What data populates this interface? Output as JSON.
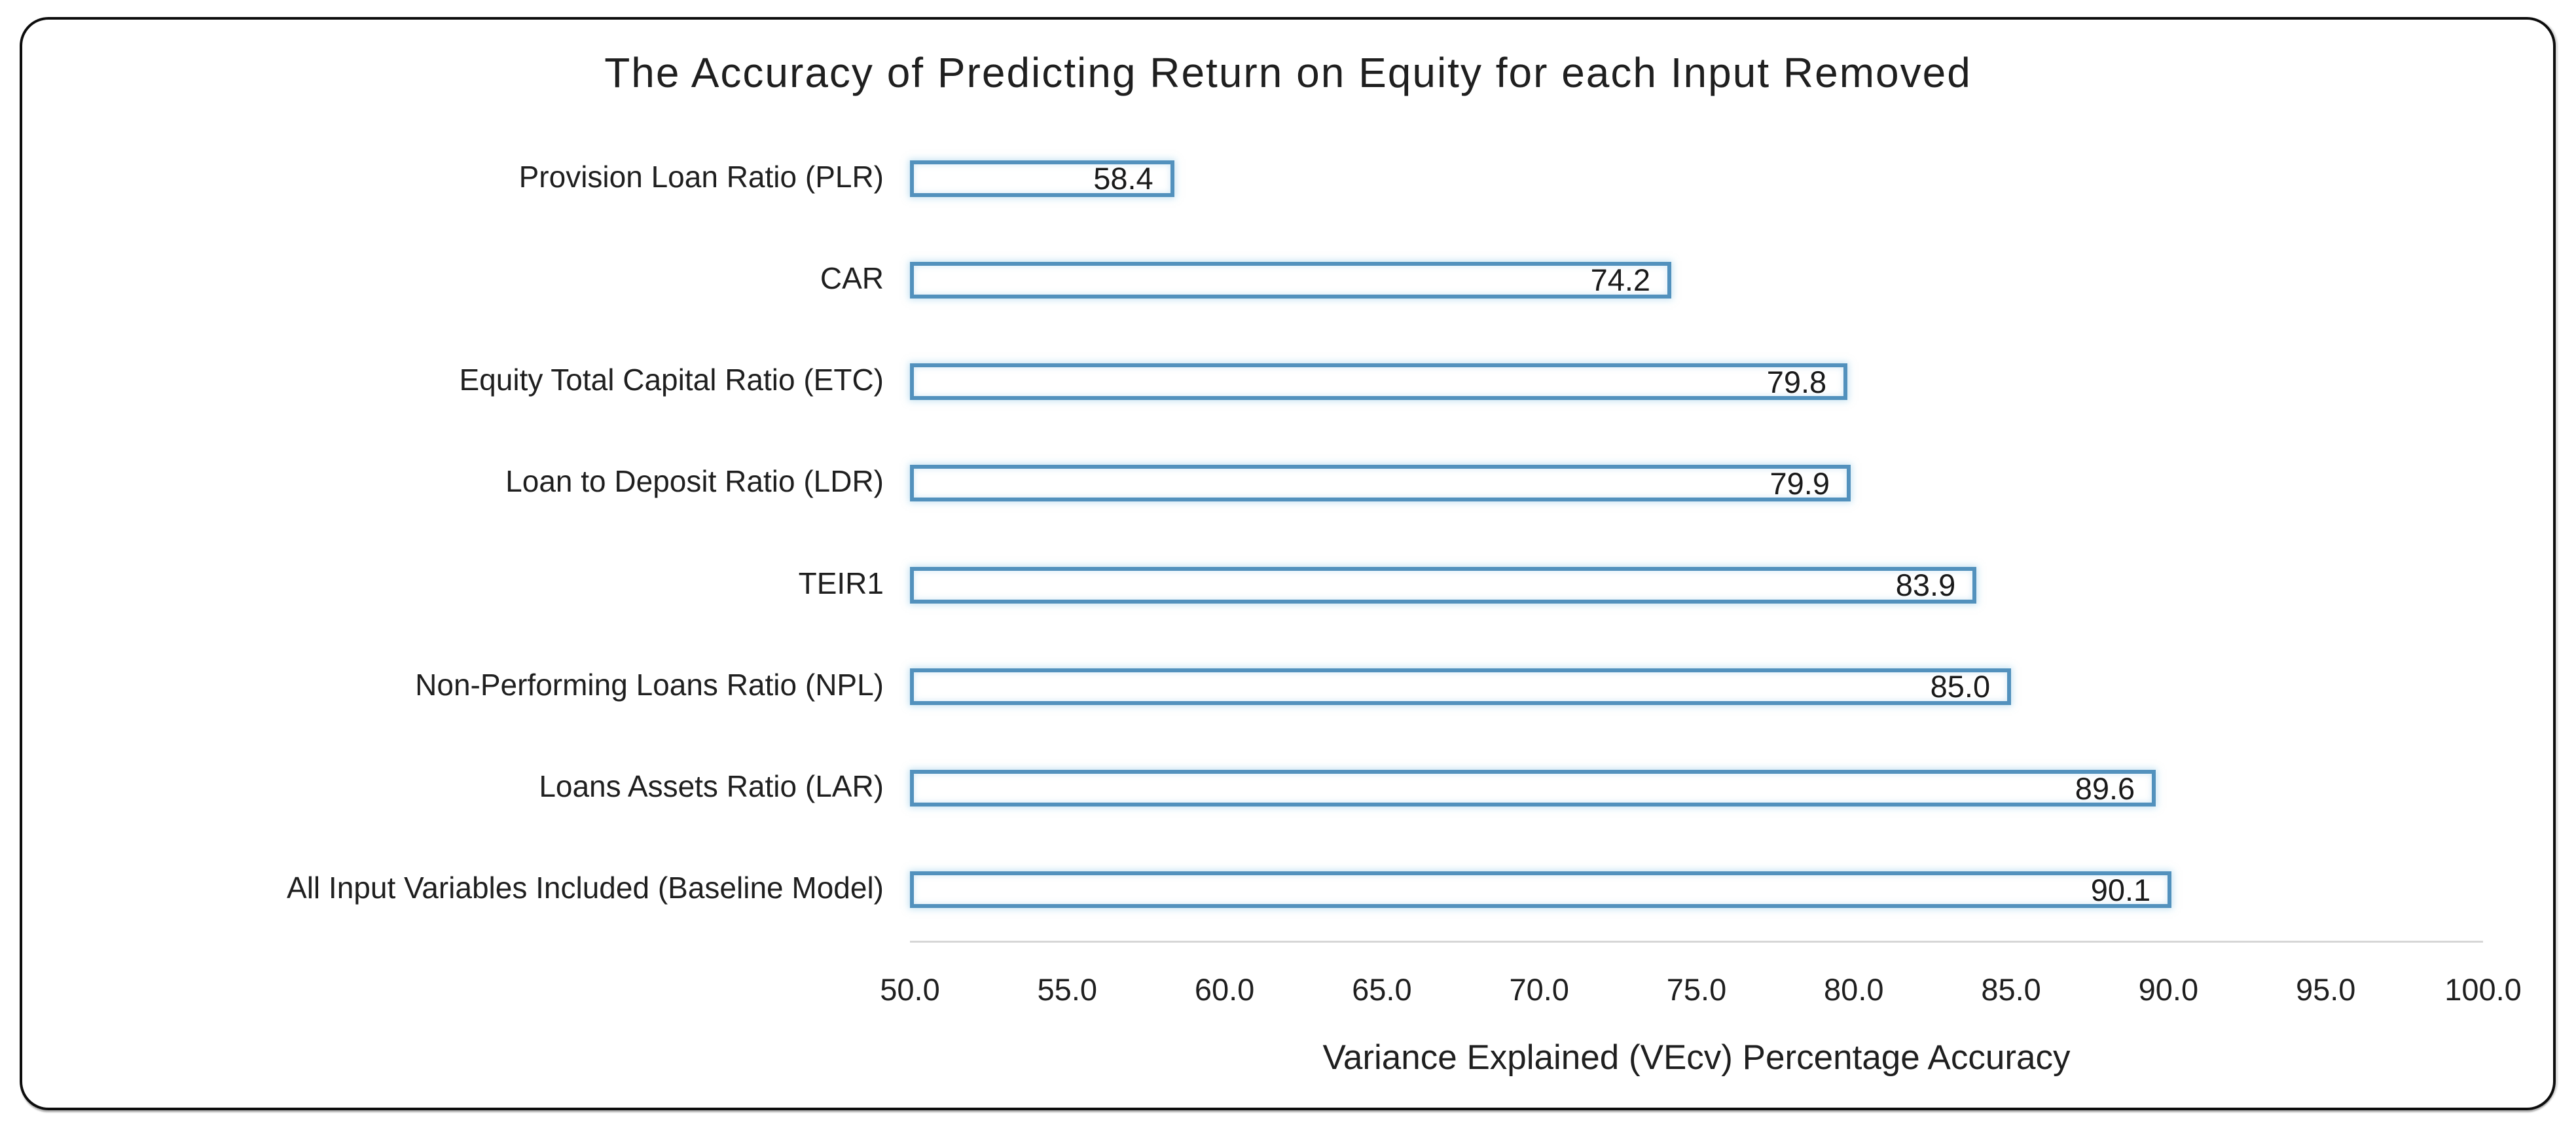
{
  "chart_data": {
    "type": "bar",
    "orientation": "horizontal",
    "title": "The Accuracy of Predicting Return on Equity for each Input Removed",
    "xlabel": "Variance Explained (VEcv) Percentage Accuracy",
    "categories": [
      "Provision Loan Ratio (PLR)",
      "CAR",
      "Equity Total Capital Ratio (ETC)",
      "Loan to Deposit Ratio (LDR)",
      "TEIR1",
      "Non-Performing Loans Ratio (NPL)",
      "Loans Assets Ratio (LAR)",
      "All Input Variables  Included (Baseline Model)"
    ],
    "values": [
      58.4,
      74.2,
      79.8,
      79.9,
      83.9,
      85.0,
      89.6,
      90.1
    ],
    "value_labels": [
      "58.4",
      "74.2",
      "79.8",
      "79.9",
      "83.9",
      "85.0",
      "89.6",
      "90.1"
    ],
    "xlim": [
      50.0,
      100.0
    ],
    "x_tick_step": 5.0,
    "x_ticks": [
      "50.0",
      "55.0",
      "60.0",
      "65.0",
      "70.0",
      "75.0",
      "80.0",
      "85.0",
      "90.0",
      "95.0",
      "100.0"
    ],
    "grid": "off",
    "legend": "none",
    "data_labels_position": "inside-end",
    "colors": {
      "bar_fill": "#FFFFFF",
      "bar_border": "#5291BD",
      "axis_line": "#D6D6D6",
      "text": "#1F1F1F",
      "frame_border": "#0D0D0D",
      "background": "#FFFFFF"
    }
  }
}
